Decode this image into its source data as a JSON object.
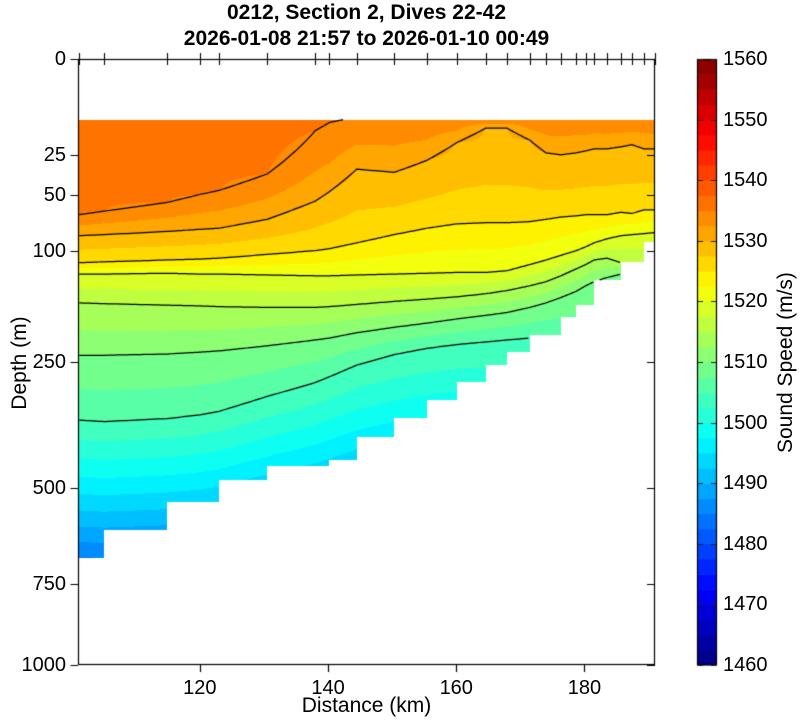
{
  "chart_data": {
    "type": "heatmap",
    "subtype": "filled-contour-ocean-section",
    "title": "0212, Section 2, Dives 22-42",
    "subtitle": "2026-01-08 21:57 to 2026-01-10 00:49",
    "xlabel": "Distance (km)",
    "ylabel": "Depth (m)",
    "colorbar_label": "Sound Speed (m/s)",
    "colormap": "jet",
    "clim": [
      1460,
      1560
    ],
    "fill_step_ms": 2.5,
    "contour_line_levels": [
      1505,
      1510,
      1515,
      1520,
      1525,
      1530,
      1535
    ],
    "x_range_km": [
      101,
      191
    ],
    "x_ticks": [
      120,
      140,
      160,
      180
    ],
    "depth_range_m": [
      0,
      1000
    ],
    "depth_scale": "sqrt",
    "y_ticks": [
      0,
      25,
      50,
      100,
      250,
      500,
      750,
      1000
    ],
    "colorbar_ticks": [
      1460,
      1470,
      1480,
      1490,
      1500,
      1510,
      1520,
      1530,
      1540,
      1550,
      1560
    ],
    "surface_min_depth_m": 10,
    "deep_gradient_m_per_ms": 16,
    "grid": false,
    "stations_km": [
      101.2,
      105.1,
      114.9,
      120,
      123,
      130.5,
      138,
      140.2,
      144.5,
      150.3,
      155.4,
      160.1,
      164.6,
      167.9,
      171.5,
      174,
      176.3,
      178.7,
      180.2,
      181.5,
      183.5,
      185.7,
      187.4,
      189.3,
      191
    ],
    "bathymetry_m": [
      678,
      604,
      534,
      534,
      483,
      450,
      450,
      438,
      389,
      351,
      316,
      284,
      255,
      234,
      207,
      207,
      181,
      165,
      165,
      133,
      133,
      112,
      112,
      91,
      91
    ],
    "surface_values_ms": [
      1536.4,
      1536.4,
      1536.6,
      1536.5,
      1536.3,
      1536.0,
      1535.6,
      1535.3,
      1534.4,
      1534.3,
      1534.4,
      1534.5,
      1534.6,
      1534.6,
      1534.5,
      1534.3,
      1534.3,
      1534.3,
      1534.4,
      1534.3,
      1534.4,
      1534.5,
      1534.4,
      1534.3,
      1534.4
    ],
    "iso_depths_m": {
      "1535": [
        66,
        63,
        56,
        50,
        47,
        36,
        14,
        11,
        9,
        9,
        9,
        9,
        9,
        9,
        9,
        9,
        9,
        9,
        9,
        9,
        9,
        9,
        9,
        9,
        9
      ],
      "1530": [
        85,
        84,
        81,
        79,
        78,
        70,
        55,
        48,
        33,
        35,
        28,
        19,
        13,
        13,
        18,
        24,
        25,
        24,
        23,
        22,
        22,
        21,
        20,
        22,
        22
      ],
      "1525": [
        113,
        112,
        110,
        109,
        108,
        104,
        100,
        98,
        92,
        84,
        78,
        74,
        73,
        73,
        72,
        70,
        68,
        67,
        66,
        66,
        66,
        64,
        65,
        62,
        62
      ],
      "1520": [
        126,
        126,
        125,
        126,
        126,
        127,
        128,
        128,
        127,
        126,
        125,
        124,
        124,
        122,
        115,
        110,
        105,
        100,
        96,
        92,
        88,
        85,
        84,
        83,
        82
      ],
      "1515": [
        162,
        163,
        165,
        166,
        167,
        168,
        168,
        167,
        164,
        160,
        157,
        154,
        150,
        146,
        140,
        135,
        128,
        120,
        115,
        110,
        108,
        113,
        113,
        113,
        113
      ],
      "1510": [
        239,
        239,
        237,
        234,
        232,
        224,
        215,
        212,
        204,
        196,
        190,
        184,
        179,
        175,
        168,
        162,
        155,
        147,
        140,
        135,
        130,
        126,
        124,
        124,
        124
      ],
      "1505": [
        355,
        358,
        352,
        345,
        338,
        310,
        285,
        275,
        255,
        238,
        228,
        222,
        218,
        215,
        212,
        210,
        209,
        208,
        208,
        207,
        207,
        206,
        206,
        206,
        206
      ]
    }
  }
}
